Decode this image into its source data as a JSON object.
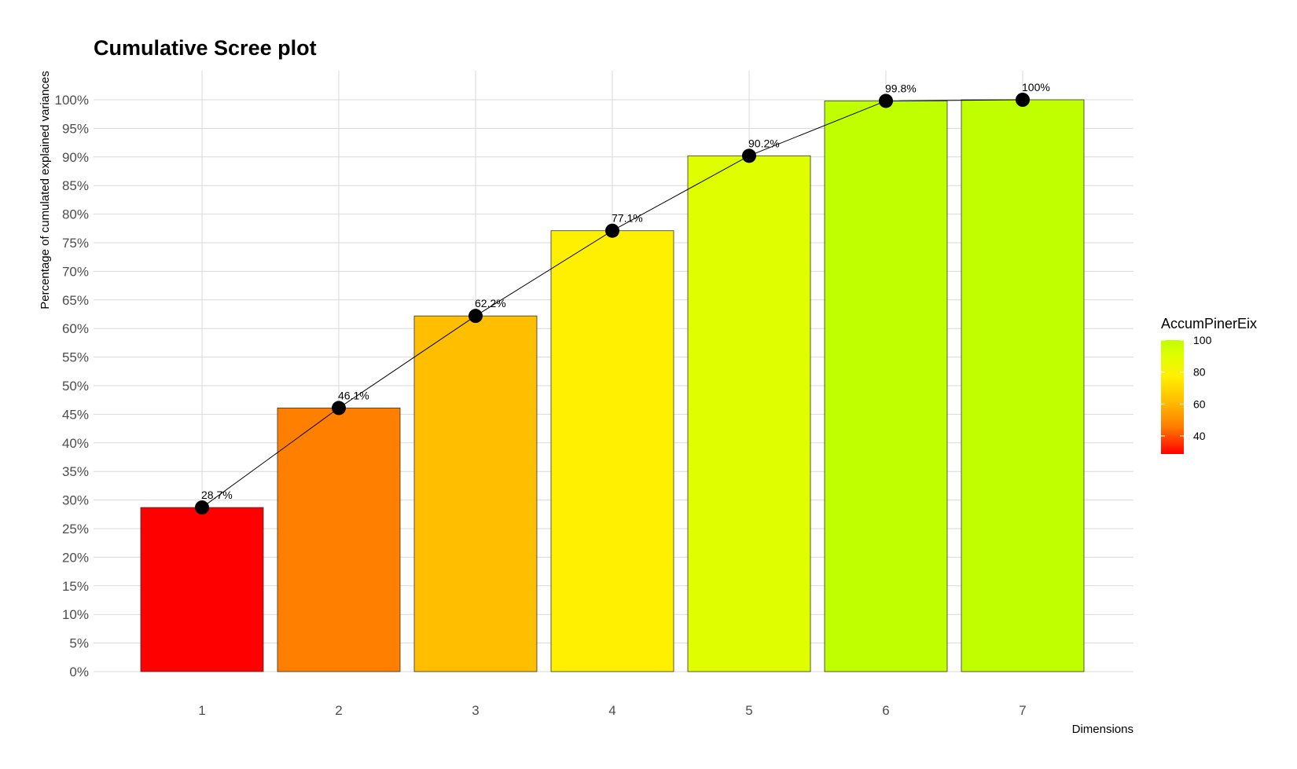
{
  "chart_data": {
    "type": "bar",
    "title": "Cumulative Scree plot",
    "xlabel": "Dimensions",
    "ylabel": "Percentage of cumulated explained variances",
    "categories": [
      "1",
      "2",
      "3",
      "4",
      "5",
      "6",
      "7"
    ],
    "values": [
      28.7,
      46.1,
      62.2,
      77.1,
      90.2,
      99.8,
      100
    ],
    "value_labels": [
      "28.7%",
      "46.1%",
      "62.2%",
      "77.1%",
      "90.2%",
      "99.8%",
      "100%"
    ],
    "ylim": [
      0,
      100
    ],
    "yticks": [
      0,
      5,
      10,
      15,
      20,
      25,
      30,
      35,
      40,
      45,
      50,
      55,
      60,
      65,
      70,
      75,
      80,
      85,
      90,
      95,
      100
    ],
    "ytick_labels": [
      "0%",
      "5%",
      "10%",
      "15%",
      "20%",
      "25%",
      "30%",
      "35%",
      "40%",
      "45%",
      "50%",
      "55%",
      "60%",
      "65%",
      "70%",
      "75%",
      "80%",
      "85%",
      "90%",
      "95%",
      "100%"
    ],
    "overlay": "line-with-points",
    "grid": true,
    "legend": {
      "title": "AccumPinerEix",
      "position": "right",
      "type": "gradient",
      "min": 28.7,
      "max": 100,
      "ticks": [
        40,
        60,
        80,
        100
      ],
      "tick_labels": [
        "40",
        "60",
        "80",
        "100"
      ],
      "color_stops": [
        {
          "value": 28.7,
          "color": "#ff0000"
        },
        {
          "value": 46.1,
          "color": "#ff7f00"
        },
        {
          "value": 62.2,
          "color": "#ffbf00"
        },
        {
          "value": 77.1,
          "color": "#ffef00"
        },
        {
          "value": 90.2,
          "color": "#dfff00"
        },
        {
          "value": 100,
          "color": "#bfff00"
        }
      ]
    },
    "colors": {
      "line": "#000000",
      "points": "#000000",
      "bar_border": "#333333"
    }
  }
}
